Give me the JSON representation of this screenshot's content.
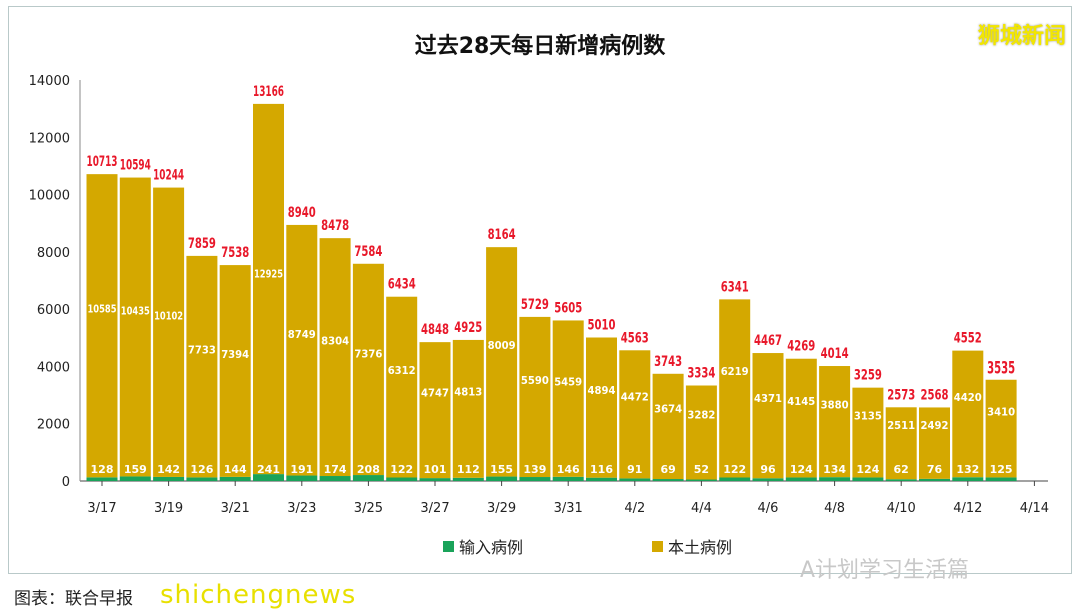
{
  "logo": "狮城新闻",
  "caption": "图表：联合早报",
  "watermarks": [
    "shichengnews",
    "A计划学习生活篇"
  ],
  "chart_data": {
    "type": "bar",
    "stacked": true,
    "title": "过去28天每日新增病例数",
    "categories": [
      "3/17",
      "3/18",
      "3/19",
      "3/20",
      "3/21",
      "3/22",
      "3/23",
      "3/24",
      "3/25",
      "3/26",
      "3/27",
      "3/28",
      "3/29",
      "3/30",
      "3/31",
      "4/1",
      "4/2",
      "4/3",
      "4/4",
      "4/5",
      "4/6",
      "4/7",
      "4/8",
      "4/9",
      "4/10",
      "4/11",
      "4/12",
      "4/13"
    ],
    "x_tick_labels": [
      "3/17",
      "3/19",
      "3/21",
      "3/23",
      "3/25",
      "3/27",
      "3/29",
      "3/31",
      "4/2",
      "4/4",
      "4/6",
      "4/8",
      "4/10",
      "4/12",
      "4/14"
    ],
    "series": [
      {
        "name": "输入病例",
        "color": "#1aa35a",
        "values": [
          128,
          159,
          142,
          126,
          144,
          241,
          191,
          174,
          208,
          122,
          101,
          112,
          155,
          139,
          146,
          116,
          91,
          69,
          52,
          122,
          96,
          124,
          134,
          124,
          62,
          76,
          132,
          125
        ]
      },
      {
        "name": "本土病例",
        "color": "#d4a800",
        "values": [
          10585,
          10435,
          10102,
          7733,
          7394,
          12925,
          8749,
          8304,
          7376,
          6312,
          4747,
          4813,
          8009,
          5590,
          5459,
          4894,
          4472,
          3674,
          3282,
          6219,
          4371,
          4145,
          3880,
          3135,
          2511,
          2492,
          4420,
          3410
        ]
      }
    ],
    "totals": [
      10713,
      10594,
      10244,
      7859,
      7538,
      13166,
      8940,
      8478,
      7584,
      6434,
      4848,
      4925,
      8164,
      5729,
      5605,
      5010,
      4563,
      3743,
      3334,
      6341,
      4467,
      4269,
      4014,
      3259,
      2573,
      2568,
      4552,
      3535
    ],
    "total_label_color": "#e8182a",
    "ylim": [
      0,
      14000
    ],
    "yticks": [
      0,
      2000,
      4000,
      6000,
      8000,
      10000,
      12000,
      14000
    ],
    "grid": false,
    "legend_position": "bottom",
    "xlabel": "",
    "ylabel": ""
  }
}
